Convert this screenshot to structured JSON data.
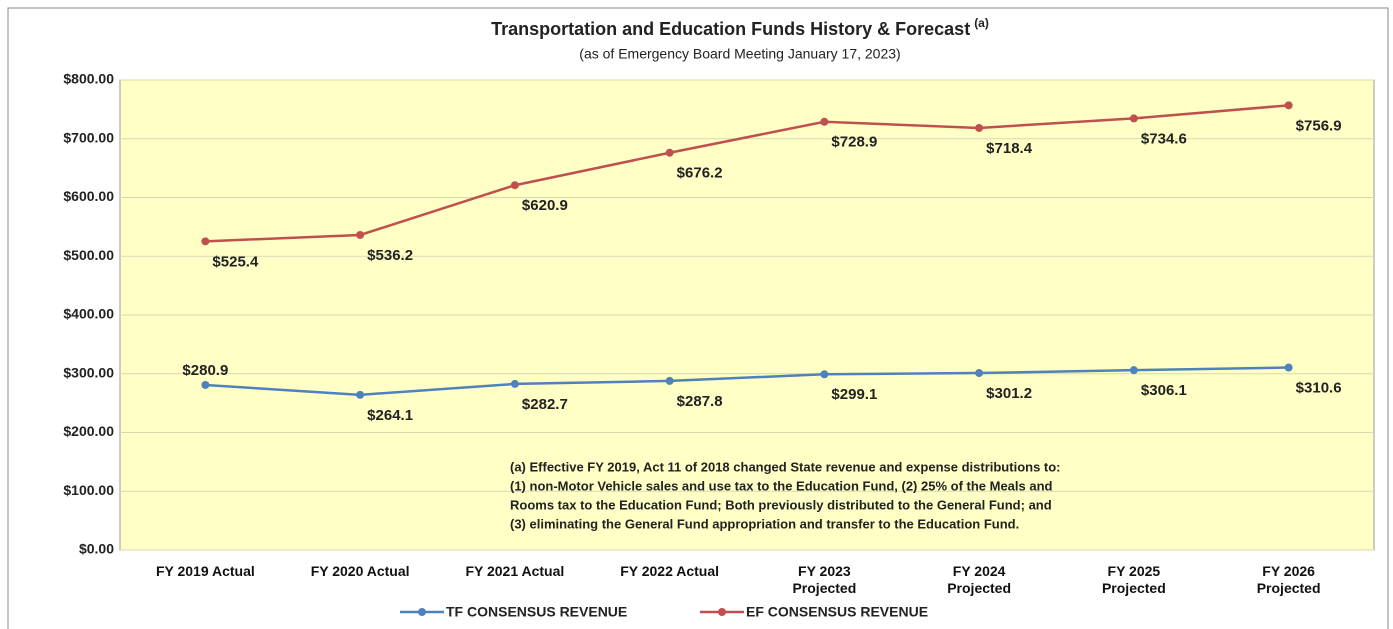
{
  "chart_data": {
    "type": "line",
    "title": "Transportation and Education Funds History & Forecast",
    "title_superscript": "(a)",
    "subtitle": "(as of Emergency Board Meeting January 17, 2023)",
    "categories": [
      "FY 2019 Actual",
      "FY 2020 Actual",
      "FY 2021 Actual",
      "FY 2022 Actual",
      "FY 2023 Projected",
      "FY 2024 Projected",
      "FY 2025 Projected",
      "FY 2026 Projected"
    ],
    "series": [
      {
        "name": "TF CONSENSUS REVENUE",
        "color": "#4f81bd",
        "values": [
          280.9,
          264.1,
          282.7,
          287.8,
          299.1,
          301.2,
          306.1,
          310.6
        ],
        "value_labels": [
          "$280.9",
          "$264.1",
          "$282.7",
          "$287.8",
          "$299.1",
          "$301.2",
          "$306.1",
          "$310.6"
        ]
      },
      {
        "name": "EF CONSENSUS REVENUE",
        "color": "#c0504d",
        "values": [
          525.4,
          536.2,
          620.9,
          676.2,
          728.9,
          718.4,
          734.6,
          756.9
        ],
        "value_labels": [
          "$525.4",
          "$536.2",
          "$620.9",
          "$676.2",
          "$728.9",
          "$718.4",
          "$734.6",
          "$756.9"
        ]
      }
    ],
    "ylim": [
      0,
      800
    ],
    "yticks": [
      {
        "value": 0,
        "label": "$0.00"
      },
      {
        "value": 100,
        "label": "$100.00"
      },
      {
        "value": 200,
        "label": "$200.00"
      },
      {
        "value": 300,
        "label": "$300.00"
      },
      {
        "value": 400,
        "label": "$400.00"
      },
      {
        "value": 500,
        "label": "$500.00"
      },
      {
        "value": 600,
        "label": "$600.00"
      },
      {
        "value": 700,
        "label": "$700.00"
      },
      {
        "value": 800,
        "label": "$800.00"
      }
    ],
    "grid": true,
    "legend": "bottom",
    "plot_background": "#ffffc6",
    "annotation": [
      "(a) Effective FY 2019, Act 11 of 2018 changed State revenue and expense distributions to:",
      "(1) non-Motor Vehicle sales and use tax to the Education Fund, (2) 25% of the Meals and",
      "Rooms tax to the Education Fund; Both previously distributed to the General Fund; and",
      "(3) eliminating the General Fund appropriation and transfer to the Education Fund."
    ]
  }
}
